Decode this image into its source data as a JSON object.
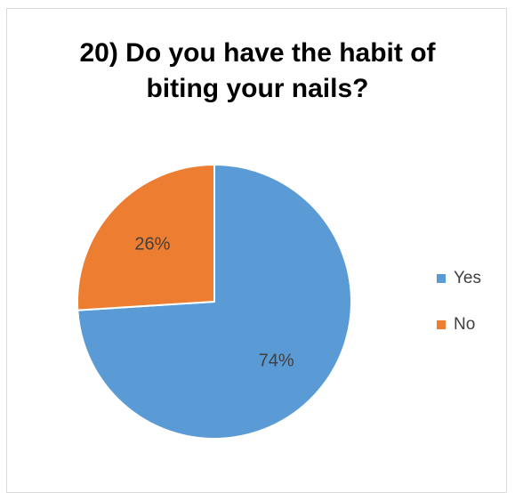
{
  "chart_data": {
    "type": "pie",
    "title_lines": [
      "20) Do you have the habit of",
      "biting your nails?"
    ],
    "categories": [
      "Yes",
      "No"
    ],
    "values": [
      74,
      26
    ],
    "labels": [
      "74%",
      "26%"
    ],
    "colors": [
      "#5b9bd5",
      "#ed7d31"
    ],
    "start_angle_deg": 0,
    "direction": "clockwise",
    "legend_position": "right"
  }
}
